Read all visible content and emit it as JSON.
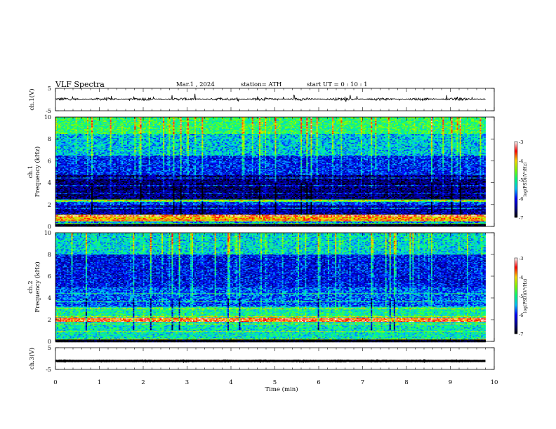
{
  "header": {
    "title": "VLF  Spectra",
    "date": "Mar.1  , 2024",
    "station": "station= ATH",
    "start_ut": "start  UT  =    0  : 10 : 1"
  },
  "chart_data": [
    {
      "type": "line",
      "panel": "ch1-waveform",
      "ylabel": "ch.1(V)",
      "yticks": [
        "5",
        "-5"
      ],
      "ylim": [
        -5,
        5
      ],
      "xlim": [
        0,
        10
      ],
      "x_end": 9.8,
      "baseline": 0.2,
      "noise_amplitude": 0.6,
      "spike_amplitude": 1.6,
      "color": "#000000"
    },
    {
      "type": "heatmap",
      "panel": "ch1-spectrogram",
      "ylabel_lines": [
        "ch.1",
        "Frequency  (kHz)"
      ],
      "yticks": [
        "0",
        "2",
        "4",
        "6",
        "8",
        "10"
      ],
      "ylim": [
        0,
        10
      ],
      "xlim": [
        0,
        10
      ],
      "x_end": 9.8,
      "bands": [
        {
          "from": 0.0,
          "to": 0.2,
          "level": -7.0
        },
        {
          "from": 0.2,
          "to": 0.5,
          "level": -5.5
        },
        {
          "from": 0.5,
          "to": 1.1,
          "level": -3.9
        },
        {
          "from": 1.1,
          "to": 1.9,
          "level": -6.4
        },
        {
          "from": 1.9,
          "to": 2.2,
          "level": -5.9
        },
        {
          "from": 2.2,
          "to": 2.5,
          "level": -4.8
        },
        {
          "from": 2.5,
          "to": 4.7,
          "level": -6.6
        },
        {
          "from": 4.7,
          "to": 6.5,
          "level": -6.0
        },
        {
          "from": 6.5,
          "to": 8.5,
          "level": -5.4
        },
        {
          "from": 8.5,
          "to": 10.0,
          "level": -4.9
        }
      ],
      "colorbar": {
        "label": "log(PSD)(V²/Hz)",
        "ticks": [
          "-3",
          "-4",
          "-5",
          "-6",
          "-7"
        ],
        "range": [
          -7,
          -3
        ]
      }
    },
    {
      "type": "heatmap",
      "panel": "ch2-spectrogram",
      "ylabel_lines": [
        "ch.2",
        "Frequency  (kHz)"
      ],
      "yticks": [
        "0",
        "2",
        "4",
        "6",
        "8",
        "10"
      ],
      "ylim": [
        0,
        10
      ],
      "xlim": [
        0,
        10
      ],
      "x_end": 9.8,
      "bands": [
        {
          "from": 0.0,
          "to": 0.2,
          "level": -7.0
        },
        {
          "from": 0.2,
          "to": 1.8,
          "level": -5.2
        },
        {
          "from": 1.8,
          "to": 2.2,
          "level": -3.6
        },
        {
          "from": 2.2,
          "to": 3.2,
          "level": -5.1
        },
        {
          "from": 3.2,
          "to": 5.0,
          "level": -5.8
        },
        {
          "from": 5.0,
          "to": 8.0,
          "level": -6.1
        },
        {
          "from": 8.0,
          "to": 10.0,
          "level": -5.3
        }
      ],
      "colorbar": {
        "label": "log(PSD)(V²/Hz)",
        "ticks": [
          "-3",
          "-4",
          "-5",
          "-6",
          "-7"
        ],
        "range": [
          -7,
          -3
        ]
      }
    },
    {
      "type": "line",
      "panel": "ch3-waveform",
      "ylabel": "ch.3(V)",
      "yticks": [
        "5",
        "-5"
      ],
      "ylim": [
        -5,
        5
      ],
      "xlim": [
        0,
        10
      ],
      "x_end": 9.8,
      "baseline": -1.1,
      "noise_amplitude": 0.15,
      "spike_amplitude": 0,
      "color": "#000000"
    }
  ],
  "xaxis": {
    "label": "Time  (min)",
    "ticks": [
      "0",
      "1",
      "2",
      "3",
      "4",
      "5",
      "6",
      "7",
      "8",
      "9",
      "10"
    ]
  },
  "colormap": [
    "#000000",
    "#00008b",
    "#0000ff",
    "#00bfff",
    "#00ff7f",
    "#7fff00",
    "#ffd700",
    "#ff0000",
    "#ffffff"
  ]
}
